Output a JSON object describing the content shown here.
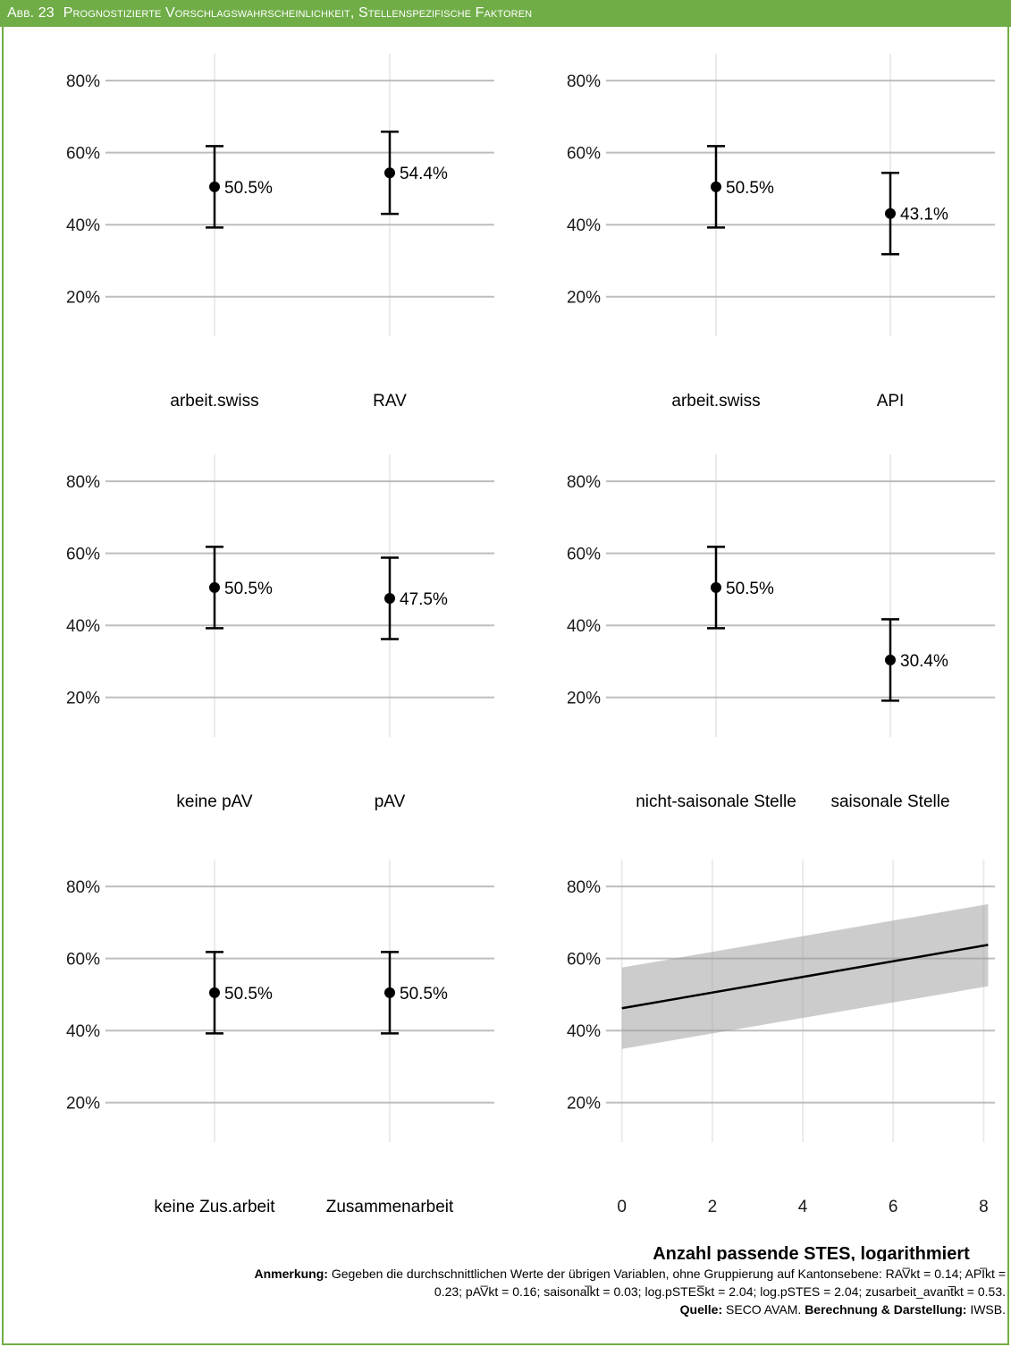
{
  "header": {
    "figure_no": "Abb. 23",
    "title": "Prognostizierte Vorschlagswahrscheinlichkeit, Stellenspezifische Faktoren"
  },
  "chart_data": [
    {
      "type": "errorbar",
      "ylim": [
        10,
        85
      ],
      "yticks": [
        "20%",
        "40%",
        "60%",
        "80%"
      ],
      "categories": [
        "arbeit.swiss",
        "RAV"
      ],
      "values": [
        50.5,
        54.4
      ],
      "lower": [
        39.2,
        43.0
      ],
      "upper": [
        61.8,
        65.8
      ],
      "labels": [
        "50.5%",
        "54.4%"
      ]
    },
    {
      "type": "errorbar",
      "ylim": [
        10,
        85
      ],
      "yticks": [
        "20%",
        "40%",
        "60%",
        "80%"
      ],
      "categories": [
        "arbeit.swiss",
        "API"
      ],
      "values": [
        50.5,
        43.1
      ],
      "lower": [
        39.2,
        31.8
      ],
      "upper": [
        61.8,
        54.4
      ],
      "labels": [
        "50.5%",
        "43.1%"
      ]
    },
    {
      "type": "errorbar",
      "ylim": [
        10,
        85
      ],
      "yticks": [
        "20%",
        "40%",
        "60%",
        "80%"
      ],
      "categories": [
        "keine pAV",
        "pAV"
      ],
      "values": [
        50.5,
        47.5
      ],
      "lower": [
        39.2,
        36.2
      ],
      "upper": [
        61.8,
        58.8
      ],
      "labels": [
        "50.5%",
        "47.5%"
      ]
    },
    {
      "type": "errorbar",
      "ylim": [
        10,
        85
      ],
      "yticks": [
        "20%",
        "40%",
        "60%",
        "80%"
      ],
      "categories": [
        "nicht-saisonale Stelle",
        "saisonale Stelle"
      ],
      "values": [
        50.5,
        30.4
      ],
      "lower": [
        39.2,
        19.1
      ],
      "upper": [
        61.8,
        41.7
      ],
      "labels": [
        "50.5%",
        "30.4%"
      ]
    },
    {
      "type": "errorbar",
      "ylim": [
        10,
        85
      ],
      "yticks": [
        "20%",
        "40%",
        "60%",
        "80%"
      ],
      "categories": [
        "keine Zus.arbeit",
        "Zusammenarbeit"
      ],
      "values": [
        50.5,
        50.5
      ],
      "lower": [
        39.2,
        39.2
      ],
      "upper": [
        61.8,
        61.8
      ],
      "labels": [
        "50.5%",
        "50.5%"
      ]
    },
    {
      "type": "line",
      "ylim": [
        10,
        85
      ],
      "yticks": [
        "20%",
        "40%",
        "60%",
        "80%"
      ],
      "xlim": [
        -0.35,
        8.25
      ],
      "xticks": [
        0,
        2,
        4,
        6,
        8
      ],
      "xlabel": "Anzahl passende STES, logarithmiert",
      "x": [
        0,
        8.1
      ],
      "y": [
        46.2,
        63.8
      ],
      "band_lower": [
        34.9,
        52.3
      ],
      "band_upper": [
        57.5,
        75.1
      ]
    }
  ],
  "note": {
    "label": "Anmerkung:",
    "text1": "Gegeben die durchschnittlichen Werte der übrigen Variablen, ohne Gruppierung auf Kantonsebene: RAV̅kt = 0.14; API̅kt =",
    "text2": "0.23; pAV̅kt = 0.16; saisonal̅kt = 0.03; log.pSTES̅kt = 2.04; log.pSTES = 2.04; zusarbeit_avant̅kt = 0.53.",
    "source_label": "Quelle:",
    "source": "SECO AVAM.",
    "calc_label": "Berechnung & Darstellung:",
    "calc": "IWSB."
  }
}
